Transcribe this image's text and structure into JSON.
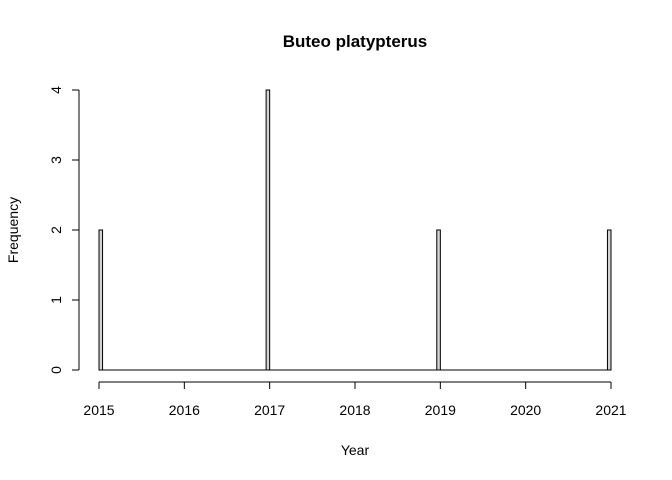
{
  "chart_data": {
    "type": "bar",
    "title": "Buteo platypterus",
    "xlabel": "Year",
    "ylabel": "Frequency",
    "x_ticks": [
      "2015",
      "2016",
      "2017",
      "2018",
      "2019",
      "2020",
      "2021"
    ],
    "y_ticks": [
      "0",
      "1",
      "2",
      "3",
      "4"
    ],
    "xlim": [
      2015,
      2021
    ],
    "ylim": [
      0,
      4
    ],
    "bin_count": 144,
    "bins_with_values": [
      {
        "bin": 0,
        "value": 2
      },
      {
        "bin": 47,
        "value": 4
      },
      {
        "bin": 95,
        "value": 2
      },
      {
        "bin": 143,
        "value": 2
      }
    ],
    "bar_fill": "#d3d3d3",
    "bar_stroke": "#000000",
    "grid": false
  }
}
